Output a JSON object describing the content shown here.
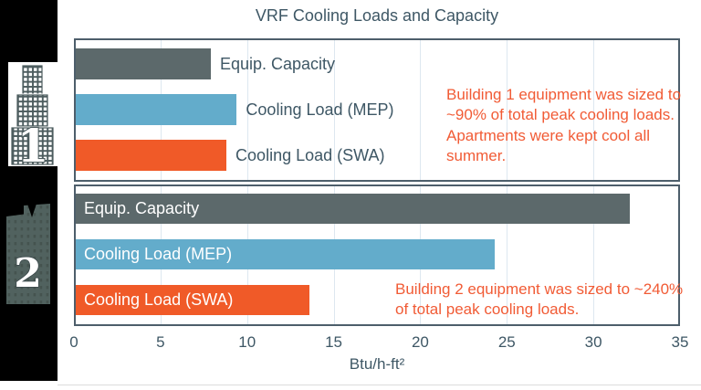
{
  "title": "VRF Cooling Loads and Capacity",
  "colors": {
    "gray": "#5c696b",
    "blue": "#63accb",
    "orange": "#f05a28",
    "annotation_orange": "#f15b35",
    "slate_text": "#3e5765",
    "panel_border": "#4d5e6b",
    "gridline": "#dde7f0",
    "sidebar_background": "#000000"
  },
  "sidebar": {
    "buildings": [
      {
        "label": "1"
      },
      {
        "label": "2"
      }
    ]
  },
  "chart_data": {
    "type": "bar",
    "orientation": "horizontal",
    "title": "VRF Cooling Loads and Capacity",
    "xlabel": "Btu/h-ft²",
    "xlim": [
      0,
      35
    ],
    "xticks": [
      0,
      5,
      10,
      15,
      20,
      25,
      30,
      35
    ],
    "grid": true,
    "panels": [
      {
        "building": "Building 1",
        "label_position": "outside",
        "bars": [
          {
            "label": "Equip. Capacity",
            "value": 7.8,
            "color_key": "gray"
          },
          {
            "label": "Cooling Load (MEP)",
            "value": 9.3,
            "color_key": "blue"
          },
          {
            "label": "Cooling Load (SWA)",
            "value": 8.7,
            "color_key": "orange"
          }
        ],
        "annotation": "Building 1 equipment was sized to ~90% of total peak cooling loads. Apartments were kept cool all summer."
      },
      {
        "building": "Building 2",
        "label_position": "inside",
        "bars": [
          {
            "label": "Equip. Capacity",
            "value": 32.0,
            "color_key": "gray"
          },
          {
            "label": "Cooling Load (MEP)",
            "value": 24.2,
            "color_key": "blue"
          },
          {
            "label": "Cooling Load (SWA)",
            "value": 13.5,
            "color_key": "orange"
          }
        ],
        "annotation": "Building 2 equipment was sized to ~240% of total peak cooling loads."
      }
    ]
  }
}
